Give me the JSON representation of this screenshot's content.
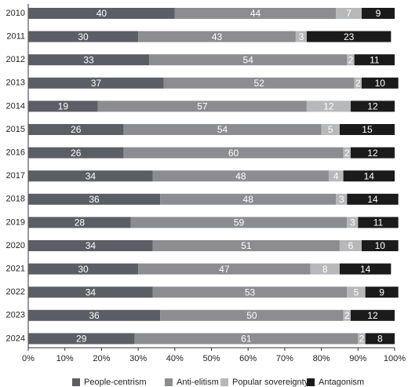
{
  "chart_data": {
    "type": "stacked-bar-horizontal",
    "categories": [
      "2010",
      "2011",
      "2012",
      "2013",
      "2014",
      "2015",
      "2016",
      "2017",
      "2018",
      "2019",
      "2020",
      "2021",
      "2022",
      "2023",
      "2024"
    ],
    "series": [
      {
        "name": "People-centrism",
        "color": "#5b5e64",
        "values": [
          40,
          30,
          33,
          37,
          19,
          26,
          26,
          34,
          36,
          28,
          34,
          30,
          34,
          36,
          29
        ]
      },
      {
        "name": "Anti-elitism",
        "color": "#8b8d91",
        "values": [
          44,
          43,
          54,
          52,
          57,
          54,
          60,
          48,
          48,
          59,
          51,
          47,
          53,
          50,
          61
        ]
      },
      {
        "name": "Popular sovereignty",
        "color": "#b6b8ba",
        "values": [
          7,
          3,
          2,
          2,
          12,
          5,
          2,
          4,
          3,
          3,
          6,
          8,
          5,
          2,
          2
        ]
      },
      {
        "name": "Antagonism",
        "color": "#1b1b1b",
        "values": [
          9,
          23,
          11,
          10,
          12,
          15,
          12,
          14,
          14,
          11,
          10,
          14,
          9,
          12,
          8
        ]
      }
    ],
    "xlim": [
      0,
      100
    ],
    "xticks": [
      {
        "value": 0,
        "label": "0%"
      },
      {
        "value": 10,
        "label": "10%"
      },
      {
        "value": 20,
        "label": "20%"
      },
      {
        "value": 30,
        "label": "30%"
      },
      {
        "value": 40,
        "label": "40%"
      },
      {
        "value": 50,
        "label": "50%"
      },
      {
        "value": 60,
        "label": "60%"
      },
      {
        "value": 70,
        "label": "70%"
      },
      {
        "value": 80,
        "label": "80%"
      },
      {
        "value": 90,
        "label": "90%"
      },
      {
        "value": 100,
        "label": "100%"
      }
    ],
    "legend": "bottom"
  }
}
